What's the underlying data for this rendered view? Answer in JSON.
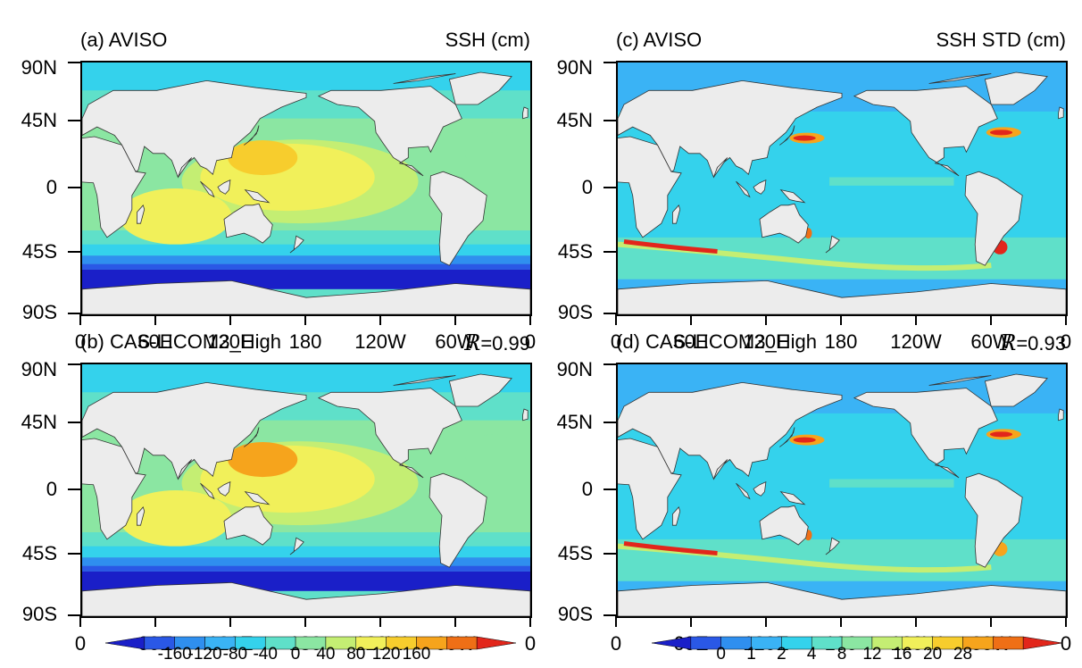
{
  "panels": [
    {
      "id": "a",
      "title_left": "(a) AVISO",
      "title_right": "SSH (cm)",
      "r_symbol": "",
      "r_value": "",
      "field": "ssh",
      "variant": "obs",
      "colors": [
        "#1a1fc8",
        "#2a58e6",
        "#2f8fef",
        "#3ab3f5",
        "#34d2ec",
        "#5fe0c9",
        "#8be6a2",
        "#c4ee73",
        "#f1f05a",
        "#f7cd2d",
        "#f6a41c",
        "#ef6f16",
        "#e2261b"
      ]
    },
    {
      "id": "b",
      "title_left": "(b) CAS-LICOM3_High",
      "title_right": "",
      "r_symbol": "R",
      "r_value": "=0.99",
      "field": "ssh",
      "variant": "model",
      "colors": [
        "#1a1fc8",
        "#2a58e6",
        "#2f8fef",
        "#3ab3f5",
        "#34d2ec",
        "#5fe0c9",
        "#8be6a2",
        "#c4ee73",
        "#f1f05a",
        "#f7cd2d",
        "#f6a41c",
        "#ef6f16",
        "#e2261b"
      ]
    },
    {
      "id": "c",
      "title_left": "(c) AVISO",
      "title_right": "SSH STD (cm)",
      "r_symbol": "",
      "r_value": "",
      "field": "std",
      "variant": "obs",
      "colors": [
        "#1a1fc8",
        "#2a58e6",
        "#2f8fef",
        "#3ab3f5",
        "#34d2ec",
        "#5fe0c9",
        "#8be6a2",
        "#c4ee73",
        "#f1f05a",
        "#f7cd2d",
        "#f6a41c",
        "#ef6f16",
        "#e2261b"
      ]
    },
    {
      "id": "d",
      "title_left": "(d) CAS-LICOM3_High",
      "title_right": "",
      "r_symbol": "R",
      "r_value": "=0.93",
      "field": "std",
      "variant": "model",
      "colors": [
        "#1a1fc8",
        "#2a58e6",
        "#2f8fef",
        "#3ab3f5",
        "#34d2ec",
        "#5fe0c9",
        "#8be6a2",
        "#c4ee73",
        "#f1f05a",
        "#f7cd2d",
        "#f6a41c",
        "#ef6f16",
        "#e2261b"
      ]
    }
  ],
  "axes": {
    "y_labels": [
      "90N",
      "45N",
      "0",
      "45S",
      "90S"
    ],
    "x_labels": [
      "0",
      "60E",
      "120E",
      "180",
      "120W",
      "60W",
      "0"
    ]
  },
  "colorbars": {
    "ssh": {
      "labels": [
        "-160",
        "-120",
        "-80",
        "-40",
        "0",
        "40",
        "80",
        "120",
        "160"
      ],
      "colors": [
        "#1a1fc8",
        "#2a58e6",
        "#2f8fef",
        "#3ab3f5",
        "#34d2ec",
        "#5fe0c9",
        "#8be6a2",
        "#c4ee73",
        "#f1f05a",
        "#f7cd2d",
        "#f6a41c",
        "#ef6f16",
        "#e2261b"
      ]
    },
    "std": {
      "labels": [
        "0",
        "1",
        "2",
        "4",
        "8",
        "12",
        "16",
        "20",
        "28"
      ],
      "colors": [
        "#1a1fc8",
        "#2a58e6",
        "#2f8fef",
        "#3ab3f5",
        "#34d2ec",
        "#5fe0c9",
        "#8be6a2",
        "#c4ee73",
        "#f1f05a",
        "#f7cd2d",
        "#f6a41c",
        "#ef6f16",
        "#e2261b"
      ]
    }
  },
  "colors": {
    "land": "#ececec",
    "coast": "#333333"
  }
}
